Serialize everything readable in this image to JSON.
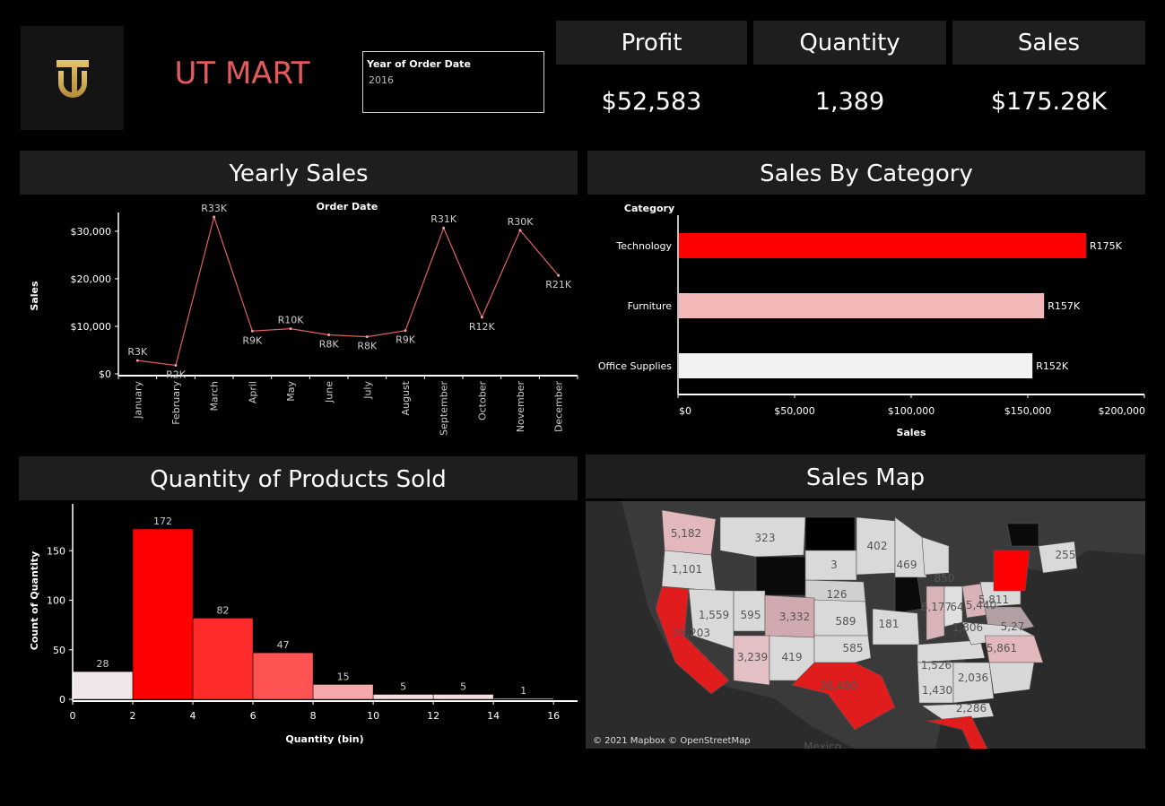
{
  "header": {
    "brand": "UT MART",
    "filter_title": "Year of Order Date",
    "filter_value": "2016"
  },
  "kpis": [
    {
      "label": "Profit",
      "value": "$52,583"
    },
    {
      "label": "Quantity",
      "value": "1,389"
    },
    {
      "label": "Sales",
      "value": "$175.28K"
    }
  ],
  "panels": {
    "yearly_sales": "Yearly Sales",
    "sales_by_category": "Sales By Category",
    "quantity_sold": "Quantity of Products Sold",
    "sales_map": "Sales Map"
  },
  "map": {
    "credit": "© 2021 Mapbox © OpenStreetMap",
    "labels": [
      "5,182",
      "323",
      "402",
      "469",
      "255",
      "1,101",
      "3",
      "850",
      "126",
      "5,811",
      "1,559",
      "595",
      "3,332",
      "589",
      "181",
      "6,177",
      "64",
      "5,440",
      "28,203",
      "1,806",
      "5,27",
      "585",
      "5,861",
      "3,239",
      "419",
      "1,526",
      "2,036",
      "36,480",
      "1,430",
      "2,286",
      "Mexico"
    ]
  },
  "chart_data": [
    {
      "type": "line",
      "title": "Order Date",
      "xlabel": "Order Date",
      "ylabel": "Sales",
      "categories": [
        "January",
        "February",
        "March",
        "April",
        "May",
        "June",
        "July",
        "August",
        "September",
        "October",
        "November",
        "December"
      ],
      "values": [
        2800,
        1800,
        33000,
        9000,
        9500,
        8200,
        7800,
        9100,
        30700,
        11900,
        30200,
        20700
      ],
      "data_labels": [
        "R3K",
        "R2K",
        "R33K",
        "R9K",
        "R10K",
        "R8K",
        "R8K",
        "R9K",
        "R31K",
        "R12K",
        "R30K",
        "R21K"
      ],
      "yticks": [
        "$0",
        "$10,000",
        "$20,000",
        "$30,000"
      ],
      "ytick_values": [
        0,
        10000,
        20000,
        30000
      ],
      "ylim": [
        0,
        33000
      ]
    },
    {
      "type": "bar",
      "orientation": "horizontal",
      "title": "",
      "category_header": "Category",
      "xlabel": "Sales",
      "categories": [
        "Technology",
        "Furniture",
        "Office Supplies"
      ],
      "values": [
        175000,
        157000,
        152000
      ],
      "data_labels": [
        "R175K",
        "R157K",
        "R152K"
      ],
      "colors": [
        "#ff0000",
        "#f2b8b8",
        "#f2f2f2"
      ],
      "xticks": [
        "$0",
        "$50,000",
        "$100,000",
        "$150,000",
        "$200,000"
      ],
      "xtick_values": [
        0,
        50000,
        100000,
        150000,
        200000
      ],
      "xlim": [
        0,
        200000
      ]
    },
    {
      "type": "bar",
      "title": "",
      "xlabel": "Quantity (bin)",
      "ylabel": "Count of Quantity",
      "bins": [
        0,
        2,
        4,
        6,
        8,
        10,
        12,
        14
      ],
      "bin_width": 2,
      "values": [
        28,
        172,
        82,
        47,
        15,
        5,
        5,
        1
      ],
      "colors": [
        "#f0e8e8",
        "#ff0000",
        "#ff2a2a",
        "#ff5252",
        "#f4aaaa",
        "#f5dede",
        "#f5dede",
        "#f5f0f0"
      ],
      "xticks": [
        "0",
        "2",
        "4",
        "6",
        "8",
        "10",
        "12",
        "14",
        "16"
      ],
      "xtick_values": [
        0,
        2,
        4,
        6,
        8,
        10,
        12,
        14,
        16
      ],
      "yticks": [
        "0",
        "50",
        "100",
        "150"
      ],
      "ytick_values": [
        0,
        50,
        100,
        150
      ],
      "xlim": [
        0,
        16.8
      ],
      "ylim": [
        0,
        172
      ]
    }
  ]
}
